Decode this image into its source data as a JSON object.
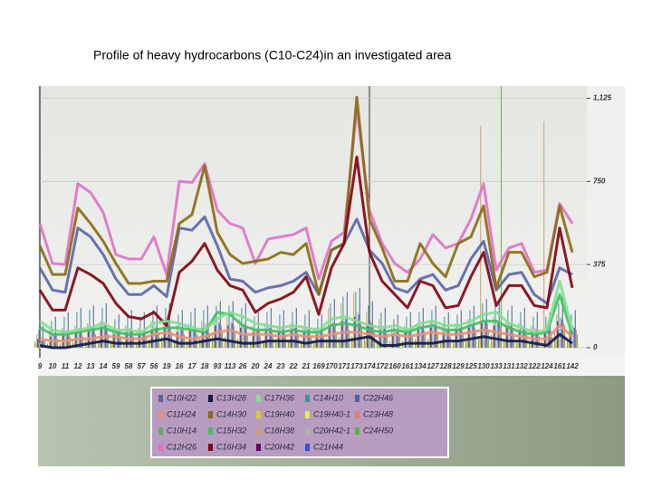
{
  "chart_data": {
    "type": "line",
    "title": "Profile of heavy hydrocarbons (C10-C24)in an investigated area",
    "categories": [
      "9",
      "10",
      "11",
      "12",
      "13",
      "14",
      "59",
      "58",
      "57",
      "56",
      "19",
      "16",
      "17",
      "18",
      "93",
      "113",
      "26",
      "20",
      "24",
      "23",
      "22",
      "21",
      "169",
      "170",
      "171",
      "173",
      "174",
      "172",
      "160",
      "161",
      "134",
      "127",
      "128",
      "129",
      "125",
      "130",
      "133",
      "131",
      "132",
      "122",
      "124",
      "161",
      "142"
    ],
    "ylim": [
      -45,
      1180
    ],
    "yticks": [
      0,
      375,
      750,
      {
        "value": 1125,
        "label": "1,125"
      }
    ],
    "grid": true,
    "series": [
      {
        "name": "C10H22",
        "color": "#5a64a8",
        "style": "line",
        "values": [
          360,
          260,
          250,
          540,
          500,
          420,
          310,
          240,
          240,
          280,
          230,
          540,
          530,
          590,
          460,
          310,
          300,
          250,
          270,
          280,
          300,
          340,
          240,
          440,
          470,
          580,
          440,
          380,
          270,
          250,
          310,
          330,
          260,
          280,
          400,
          480,
          260,
          330,
          340,
          240,
          200,
          360,
          330
        ]
      },
      {
        "name": "C11H24",
        "color": "#e8907a",
        "style": "line",
        "values": [
          40,
          30,
          30,
          40,
          40,
          50,
          50,
          40,
          40,
          60,
          70,
          50,
          40,
          50,
          70,
          80,
          60,
          60,
          60,
          50,
          60,
          50,
          50,
          60,
          70,
          70,
          60,
          50,
          60,
          50,
          60,
          70,
          60,
          60,
          70,
          80,
          70,
          60,
          50,
          40,
          40,
          100,
          50
        ]
      },
      {
        "name": "C10H14",
        "color": "#6aa86a",
        "style": "bar",
        "values": [
          30,
          20,
          20,
          30,
          40,
          30,
          30,
          20,
          20,
          40,
          50,
          30,
          30,
          40,
          60,
          50,
          40,
          30,
          30,
          40,
          30,
          30,
          30,
          40,
          50,
          50,
          40,
          30,
          30,
          30,
          40,
          40,
          30,
          30,
          40,
          50,
          60,
          40,
          30,
          20,
          30,
          80,
          30
        ]
      },
      {
        "name": "C12H26",
        "color": "#e070c8",
        "style": "line",
        "values": [
          560,
          380,
          375,
          740,
          700,
          610,
          420,
          400,
          400,
          500,
          330,
          750,
          745,
          830,
          620,
          560,
          540,
          380,
          490,
          500,
          510,
          540,
          310,
          480,
          520,
          1080,
          620,
          470,
          380,
          340,
          400,
          510,
          450,
          470,
          580,
          740,
          350,
          450,
          470,
          340,
          350,
          650,
          560
        ]
      },
      {
        "name": "C13H28",
        "color": "#101848",
        "style": "line",
        "values": [
          10,
          0,
          0,
          10,
          20,
          30,
          20,
          20,
          20,
          30,
          40,
          20,
          20,
          30,
          40,
          30,
          20,
          20,
          30,
          30,
          30,
          20,
          30,
          30,
          30,
          40,
          50,
          10,
          10,
          20,
          20,
          20,
          30,
          30,
          40,
          50,
          40,
          30,
          30,
          20,
          10,
          60,
          20
        ]
      },
      {
        "name": "C14H30",
        "color": "#8a6a10",
        "style": "line",
        "values": [
          460,
          330,
          330,
          630,
          560,
          480,
          380,
          290,
          290,
          300,
          300,
          560,
          600,
          820,
          520,
          420,
          380,
          390,
          400,
          430,
          420,
          470,
          240,
          440,
          470,
          1130,
          580,
          450,
          300,
          300,
          470,
          380,
          320,
          470,
          500,
          640,
          270,
          430,
          430,
          320,
          340,
          640,
          430
        ]
      },
      {
        "name": "C15H32",
        "color": "#40c060",
        "style": "line",
        "values": [
          90,
          60,
          60,
          70,
          80,
          90,
          70,
          60,
          60,
          80,
          90,
          90,
          80,
          70,
          160,
          150,
          100,
          80,
          80,
          70,
          80,
          70,
          70,
          100,
          110,
          100,
          80,
          70,
          80,
          70,
          90,
          100,
          80,
          80,
          100,
          120,
          120,
          90,
          70,
          60,
          70,
          240,
          60
        ]
      },
      {
        "name": "C16H34",
        "color": "#800010",
        "style": "line",
        "values": [
          260,
          170,
          170,
          360,
          330,
          290,
          200,
          140,
          130,
          160,
          100,
          340,
          390,
          470,
          350,
          280,
          260,
          160,
          200,
          220,
          250,
          320,
          150,
          360,
          470,
          860,
          430,
          300,
          240,
          180,
          300,
          280,
          180,
          190,
          320,
          430,
          190,
          280,
          280,
          190,
          180,
          540,
          270
        ]
      },
      {
        "name": "C17H36",
        "color": "#80e090",
        "style": "line",
        "values": [
          120,
          80,
          70,
          80,
          90,
          110,
          80,
          80,
          70,
          110,
          120,
          110,
          90,
          80,
          130,
          160,
          140,
          110,
          100,
          90,
          100,
          90,
          80,
          130,
          140,
          120,
          100,
          90,
          100,
          80,
          110,
          120,
          100,
          100,
          120,
          150,
          160,
          110,
          90,
          70,
          80,
          300,
          80
        ]
      },
      {
        "name": "C19H40",
        "color": "#d8d020",
        "style": "bar",
        "values": [
          20,
          10,
          10,
          20,
          20,
          30,
          20,
          20,
          20,
          30,
          30,
          20,
          20,
          30,
          40,
          30,
          30,
          20,
          20,
          20,
          30,
          20,
          20,
          30,
          30,
          40,
          30,
          20,
          20,
          20,
          30,
          30,
          20,
          20,
          30,
          40,
          30,
          30,
          20,
          20,
          20,
          50,
          20
        ]
      },
      {
        "name": "C18H38",
        "color": "#d0a070",
        "style": "bar",
        "values": [
          60,
          80,
          90,
          100,
          110,
          120,
          90,
          100,
          90,
          120,
          130,
          100,
          110,
          120,
          150,
          140,
          130,
          100,
          110,
          100,
          110,
          100,
          90,
          180,
          200,
          250,
          160,
          130,
          90,
          100,
          110,
          120,
          100,
          110,
          130,
          1000,
          140,
          120,
          110,
          100,
          1020,
          150,
          110
        ]
      },
      {
        "name": "C20H42",
        "color": "#600060",
        "style": "bar",
        "values": [
          40,
          50,
          60,
          70,
          80,
          90,
          60,
          70,
          60,
          80,
          90,
          70,
          80,
          90,
          100,
          100,
          90,
          70,
          80,
          70,
          80,
          70,
          60,
          100,
          120,
          140,
          100,
          80,
          60,
          70,
          80,
          90,
          70,
          80,
          90,
          110,
          100,
          90,
          80,
          70,
          70,
          120,
          80
        ]
      },
      {
        "name": "C14H10",
        "color": "#3a9a9a",
        "style": "bar",
        "values": [
          80,
          120,
          140,
          160,
          170,
          180,
          130,
          150,
          140,
          170,
          180,
          150,
          160,
          170,
          190,
          190,
          180,
          140,
          160,
          150,
          160,
          150,
          130,
          200,
          230,
          250,
          190,
          160,
          130,
          140,
          160,
          170,
          140,
          150,
          170,
          200,
          190,
          170,
          160,
          140,
          140,
          200,
          150
        ]
      },
      {
        "name": "C19H40-1",
        "color": "#e8e858",
        "style": "bar",
        "values": [
          20,
          20,
          30,
          30,
          30,
          40,
          30,
          30,
          30,
          40,
          40,
          30,
          30,
          40,
          50,
          40,
          40,
          30,
          30,
          30,
          40,
          30,
          30,
          40,
          40,
          50,
          40,
          30,
          30,
          30,
          40,
          40,
          30,
          30,
          40,
          50,
          40,
          40,
          30,
          30,
          30,
          60,
          30
        ]
      },
      {
        "name": "C20H42-1",
        "color": "#b0b0b0",
        "style": "bar",
        "values": [
          50,
          70,
          80,
          90,
          100,
          110,
          80,
          90,
          80,
          100,
          110,
          90,
          100,
          110,
          120,
          120,
          110,
          90,
          100,
          90,
          100,
          90,
          80,
          120,
          140,
          160,
          120,
          100,
          80,
          90,
          100,
          110,
          90,
          100,
          110,
          130,
          120,
          110,
          100,
          90,
          90,
          140,
          100
        ]
      },
      {
        "name": "C21H44",
        "color": "#3050e0",
        "style": "bar",
        "values": [
          30,
          60,
          70,
          80,
          90,
          100,
          70,
          80,
          70,
          90,
          100,
          80,
          90,
          100,
          110,
          110,
          100,
          80,
          90,
          80,
          90,
          80,
          70,
          110,
          130,
          150,
          110,
          90,
          70,
          80,
          90,
          100,
          80,
          90,
          100,
          120,
          110,
          100,
          90,
          80,
          80,
          130,
          90
        ]
      },
      {
        "name": "C22H46",
        "color": "#5060a0",
        "style": "bar",
        "values": [
          100,
          140,
          160,
          180,
          190,
          200,
          150,
          170,
          160,
          190,
          200,
          170,
          180,
          190,
          210,
          210,
          200,
          160,
          180,
          170,
          180,
          170,
          150,
          220,
          250,
          270,
          210,
          180,
          150,
          160,
          180,
          190,
          160,
          170,
          190,
          220,
          210,
          190,
          180,
          160,
          160,
          230,
          170
        ]
      },
      {
        "name": "C23H48",
        "color": "#e08070",
        "style": "bar",
        "values": [
          40,
          60,
          70,
          80,
          80,
          90,
          70,
          80,
          70,
          90,
          90,
          80,
          80,
          90,
          100,
          100,
          90,
          80,
          80,
          80,
          80,
          80,
          70,
          100,
          110,
          120,
          100,
          80,
          70,
          80,
          80,
          90,
          80,
          80,
          90,
          110,
          100,
          90,
          80,
          80,
          80,
          110,
          80
        ]
      },
      {
        "name": "C24H50",
        "color": "#60b040",
        "style": "bar",
        "values": [
          30,
          40,
          50,
          50,
          60,
          60,
          50,
          50,
          50,
          60,
          70,
          60,
          60,
          60,
          70,
          70,
          60,
          50,
          60,
          50,
          60,
          50,
          50,
          70,
          80,
          90,
          70,
          60,
          50,
          50,
          60,
          60,
          50,
          60,
          70,
          80,
          1180,
          60,
          60,
          50,
          50,
          100,
          60
        ]
      }
    ]
  }
}
